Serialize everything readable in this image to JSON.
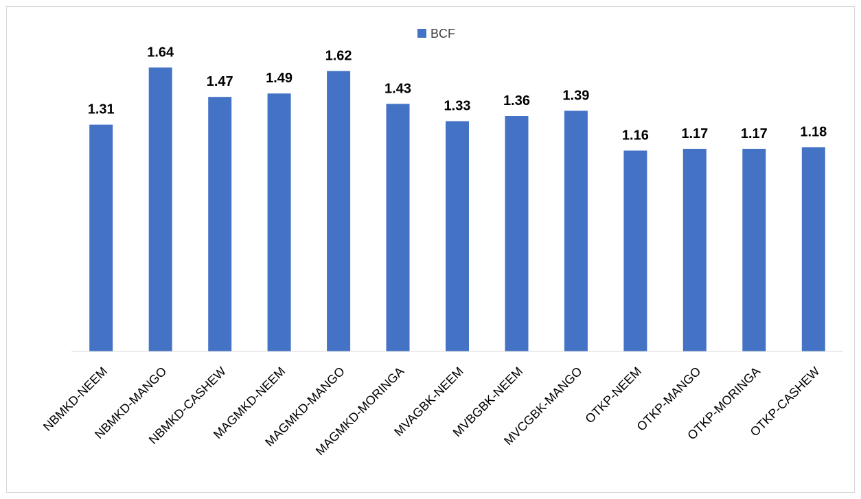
{
  "chart_data": {
    "type": "bar",
    "categories": [
      "NBMKD-NEEM",
      "NBMKD-MANGO",
      "NBMKD-CASHEW",
      "MAGMKD-NEEM",
      "MAGMKD-MANGO",
      "MAGMKD-MORINGA",
      "MVAGBK-NEEM",
      "MVBGBK-NEEM",
      "MVCGBK-MANGO",
      "OTKP-NEEM",
      "OTKP-MANGO",
      "OTKP-MORINGA",
      "OTKP-CASHEW"
    ],
    "series": [
      {
        "name": "BCF",
        "values": [
          1.31,
          1.64,
          1.47,
          1.49,
          1.62,
          1.43,
          1.33,
          1.36,
          1.39,
          1.16,
          1.17,
          1.17,
          1.18
        ],
        "color": "#4472C4"
      }
    ],
    "data_labels": [
      "1.31",
      "1.64",
      "1.47",
      "1.49",
      "1.62",
      "1.43",
      "1.33",
      "1.36",
      "1.39",
      "1.16",
      "1.17",
      "1.17",
      "1.18"
    ],
    "title": "",
    "xlabel": "",
    "ylabel": "",
    "ylim": [
      0,
      1.8
    ],
    "grid": false,
    "legend_position": "top-center"
  }
}
